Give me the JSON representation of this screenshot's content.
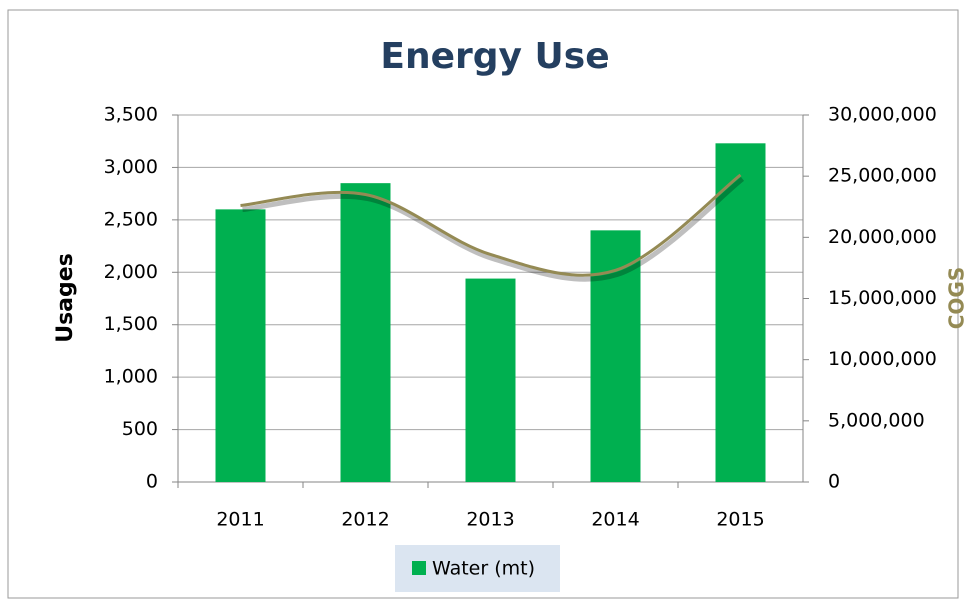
{
  "chart_data": {
    "type": "bar",
    "title": "Energy Use",
    "categories": [
      "2011",
      "2012",
      "2013",
      "2014",
      "2015"
    ],
    "series": [
      {
        "name": "Water (mt)",
        "color": "#00b050",
        "values": [
          2600,
          2850,
          1940,
          2400,
          3230
        ]
      },
      {
        "type": "line",
        "axis": "y2",
        "color": "#948a54",
        "values": [
          22600000,
          23500000,
          18600000,
          17300000,
          25100000
        ]
      }
    ],
    "ylabel": "Usages",
    "y2label": "COGS",
    "ylim": [
      0,
      3500
    ],
    "yticks": [
      0,
      500,
      {
        "value": 1000,
        "label": "1,000"
      },
      {
        "value": 1500,
        "label": "1,500"
      },
      {
        "value": 2000,
        "label": "2,000"
      },
      {
        "value": 2500,
        "label": "2,500"
      },
      {
        "value": 3000,
        "label": "3,000"
      },
      {
        "value": 3500,
        "label": "3,500"
      }
    ],
    "y2lim": [
      0,
      30000000
    ],
    "y2ticks": [
      0,
      {
        "value": 5000000,
        "label": "5,000,000"
      },
      {
        "value": 10000000,
        "label": "10,000,000"
      },
      {
        "value": 15000000,
        "label": "15,000,000"
      },
      {
        "value": 20000000,
        "label": "20,000,000"
      },
      {
        "value": 25000000,
        "label": "25,000,000"
      },
      {
        "value": 30000000,
        "label": "30,000,000"
      }
    ],
    "grid": true,
    "legend": "bottom"
  }
}
